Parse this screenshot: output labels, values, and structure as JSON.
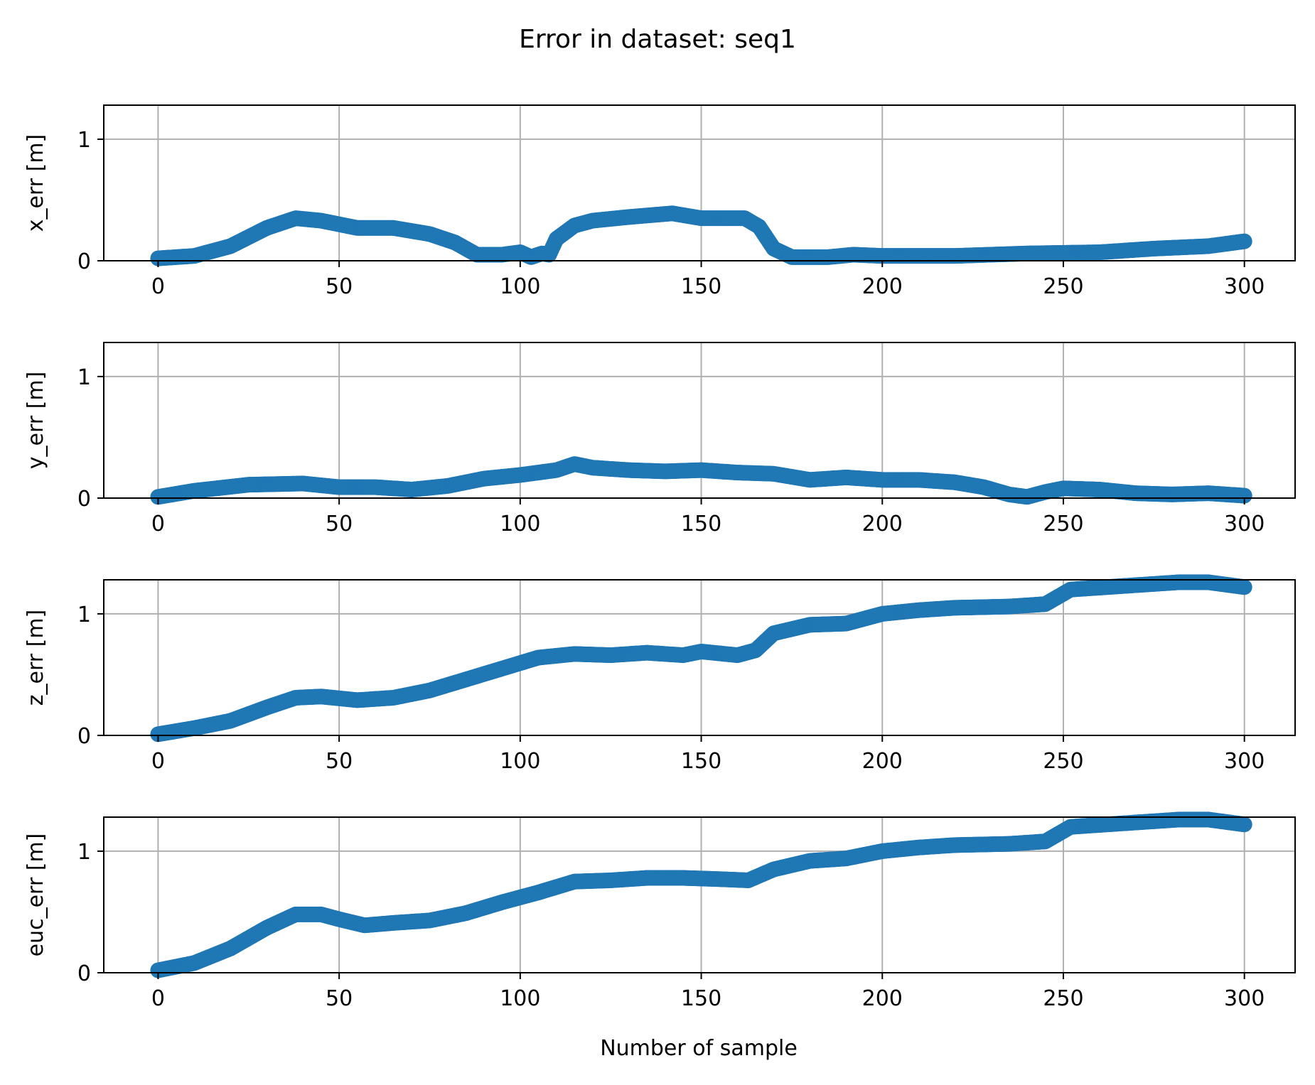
{
  "chart_data": {
    "title": "Error in dataset: seq1",
    "xlabel": "Number of sample",
    "x_ticks": [
      0,
      50,
      100,
      150,
      200,
      250,
      300
    ],
    "y_ticks": [
      0,
      1
    ],
    "xlim": [
      -15,
      314
    ],
    "ylim": [
      0,
      1.28
    ],
    "grid": true,
    "marker_color": "#1f77b4",
    "subplots": [
      {
        "type": "scatter",
        "ylabel": "x_err [m]",
        "points": [
          [
            0,
            0.02
          ],
          [
            10,
            0.04
          ],
          [
            20,
            0.12
          ],
          [
            30,
            0.27
          ],
          [
            38,
            0.35
          ],
          [
            45,
            0.33
          ],
          [
            55,
            0.27
          ],
          [
            65,
            0.27
          ],
          [
            75,
            0.22
          ],
          [
            82,
            0.15
          ],
          [
            88,
            0.05
          ],
          [
            95,
            0.05
          ],
          [
            100,
            0.07
          ],
          [
            103,
            0.03
          ],
          [
            106,
            0.06
          ],
          [
            108,
            0.05
          ],
          [
            110,
            0.18
          ],
          [
            115,
            0.29
          ],
          [
            120,
            0.33
          ],
          [
            130,
            0.36
          ],
          [
            142,
            0.39
          ],
          [
            150,
            0.35
          ],
          [
            162,
            0.35
          ],
          [
            166,
            0.28
          ],
          [
            170,
            0.1
          ],
          [
            175,
            0.03
          ],
          [
            185,
            0.03
          ],
          [
            192,
            0.05
          ],
          [
            200,
            0.04
          ],
          [
            220,
            0.04
          ],
          [
            240,
            0.06
          ],
          [
            260,
            0.07
          ],
          [
            275,
            0.1
          ],
          [
            290,
            0.12
          ],
          [
            300,
            0.16
          ]
        ]
      },
      {
        "type": "scatter",
        "ylabel": "y_err [m]",
        "points": [
          [
            0,
            0.01
          ],
          [
            10,
            0.06
          ],
          [
            25,
            0.11
          ],
          [
            40,
            0.12
          ],
          [
            50,
            0.09
          ],
          [
            60,
            0.09
          ],
          [
            70,
            0.07
          ],
          [
            80,
            0.1
          ],
          [
            90,
            0.16
          ],
          [
            100,
            0.19
          ],
          [
            110,
            0.23
          ],
          [
            115,
            0.28
          ],
          [
            120,
            0.25
          ],
          [
            130,
            0.23
          ],
          [
            140,
            0.22
          ],
          [
            150,
            0.23
          ],
          [
            160,
            0.21
          ],
          [
            170,
            0.2
          ],
          [
            180,
            0.15
          ],
          [
            190,
            0.17
          ],
          [
            200,
            0.15
          ],
          [
            210,
            0.15
          ],
          [
            220,
            0.13
          ],
          [
            228,
            0.09
          ],
          [
            235,
            0.03
          ],
          [
            240,
            0.01
          ],
          [
            245,
            0.05
          ],
          [
            250,
            0.08
          ],
          [
            260,
            0.07
          ],
          [
            270,
            0.04
          ],
          [
            280,
            0.03
          ],
          [
            290,
            0.04
          ],
          [
            300,
            0.02
          ]
        ]
      },
      {
        "type": "scatter",
        "ylabel": "z_err [m]",
        "points": [
          [
            0,
            0.01
          ],
          [
            10,
            0.06
          ],
          [
            20,
            0.12
          ],
          [
            30,
            0.23
          ],
          [
            38,
            0.31
          ],
          [
            45,
            0.32
          ],
          [
            55,
            0.29
          ],
          [
            65,
            0.31
          ],
          [
            75,
            0.37
          ],
          [
            85,
            0.46
          ],
          [
            95,
            0.55
          ],
          [
            105,
            0.64
          ],
          [
            115,
            0.67
          ],
          [
            125,
            0.66
          ],
          [
            135,
            0.68
          ],
          [
            145,
            0.66
          ],
          [
            150,
            0.69
          ],
          [
            160,
            0.66
          ],
          [
            165,
            0.7
          ],
          [
            170,
            0.84
          ],
          [
            180,
            0.91
          ],
          [
            190,
            0.92
          ],
          [
            200,
            1.0
          ],
          [
            210,
            1.03
          ],
          [
            220,
            1.05
          ],
          [
            235,
            1.06
          ],
          [
            245,
            1.08
          ],
          [
            252,
            1.2
          ],
          [
            262,
            1.22
          ],
          [
            272,
            1.24
          ],
          [
            282,
            1.26
          ],
          [
            290,
            1.26
          ],
          [
            300,
            1.22
          ]
        ]
      },
      {
        "type": "scatter",
        "ylabel": "euc_err [m]",
        "points": [
          [
            0,
            0.02
          ],
          [
            10,
            0.08
          ],
          [
            20,
            0.2
          ],
          [
            30,
            0.37
          ],
          [
            38,
            0.48
          ],
          [
            45,
            0.48
          ],
          [
            50,
            0.44
          ],
          [
            57,
            0.39
          ],
          [
            65,
            0.41
          ],
          [
            75,
            0.43
          ],
          [
            85,
            0.49
          ],
          [
            95,
            0.58
          ],
          [
            105,
            0.66
          ],
          [
            115,
            0.75
          ],
          [
            125,
            0.76
          ],
          [
            135,
            0.78
          ],
          [
            145,
            0.78
          ],
          [
            155,
            0.77
          ],
          [
            163,
            0.76
          ],
          [
            170,
            0.85
          ],
          [
            180,
            0.92
          ],
          [
            190,
            0.94
          ],
          [
            200,
            1.0
          ],
          [
            210,
            1.03
          ],
          [
            220,
            1.05
          ],
          [
            235,
            1.06
          ],
          [
            245,
            1.08
          ],
          [
            252,
            1.2
          ],
          [
            262,
            1.22
          ],
          [
            272,
            1.24
          ],
          [
            282,
            1.26
          ],
          [
            290,
            1.26
          ],
          [
            300,
            1.22
          ]
        ]
      }
    ]
  }
}
